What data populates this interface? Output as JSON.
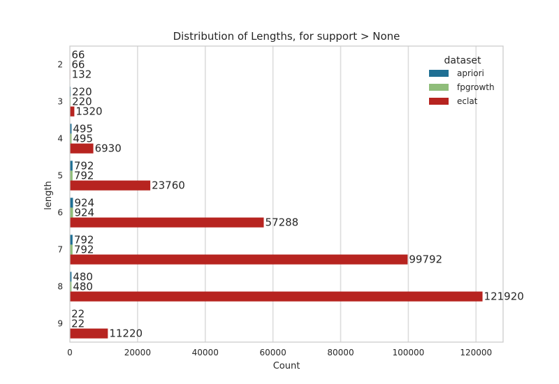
{
  "chart_data": {
    "type": "bar",
    "orientation": "horizontal",
    "title": "Distribution of Lengths, for support > None",
    "xlabel": "Count",
    "ylabel": "length",
    "xlim": [
      0,
      128000
    ],
    "x_ticks": [
      0,
      20000,
      40000,
      60000,
      80000,
      100000,
      120000
    ],
    "x_tick_labels": [
      "0",
      "20000",
      "40000",
      "60000",
      "80000",
      "100000",
      "120000"
    ],
    "categories": [
      "2",
      "3",
      "4",
      "5",
      "6",
      "7",
      "8",
      "9"
    ],
    "legend_title": "dataset",
    "legend_position": "top-right",
    "grid": true,
    "series": [
      {
        "name": "apriori",
        "color": "#1f6f93",
        "values": [
          66,
          220,
          495,
          792,
          924,
          792,
          480,
          22
        ]
      },
      {
        "name": "fpgrowth",
        "color": "#8fbd7a",
        "values": [
          66,
          220,
          495,
          792,
          924,
          792,
          480,
          22
        ]
      },
      {
        "name": "eclat",
        "color": "#b72420",
        "values": [
          132,
          1320,
          6930,
          23760,
          57288,
          99792,
          121920,
          11220
        ]
      }
    ]
  }
}
